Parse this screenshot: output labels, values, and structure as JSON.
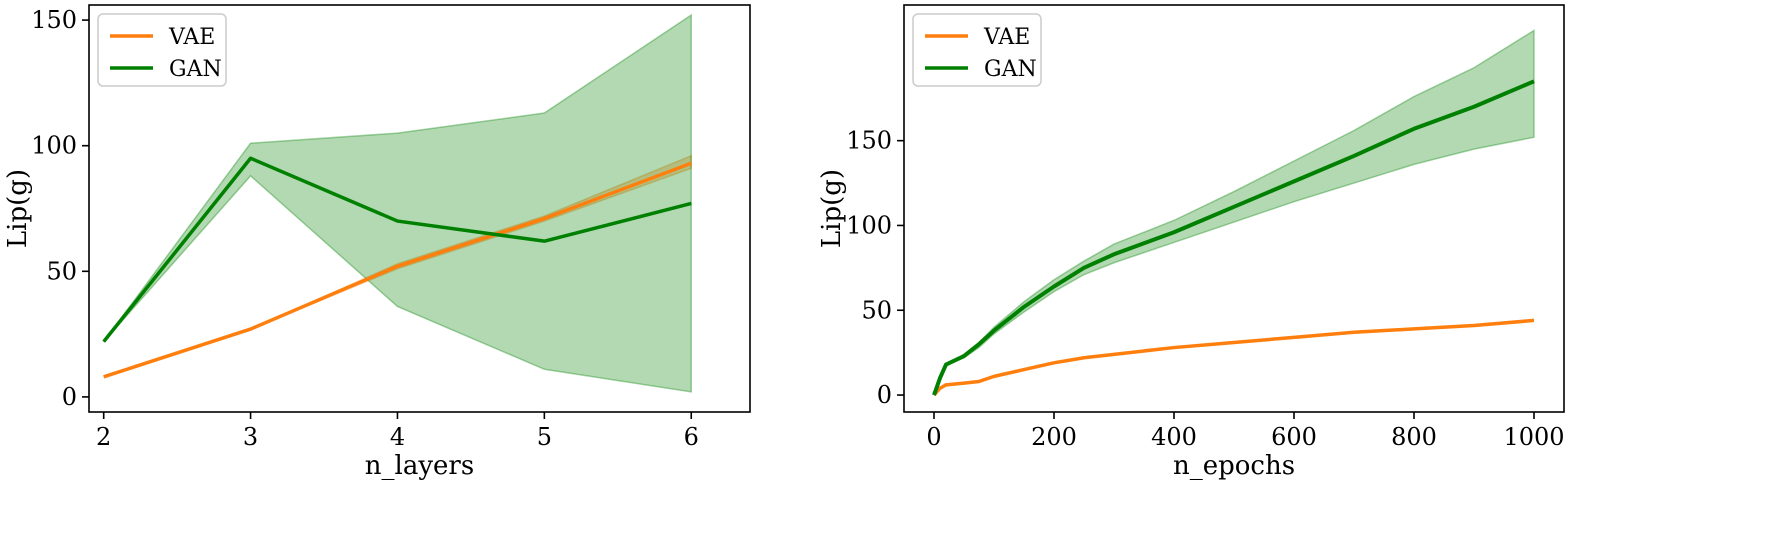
{
  "chart_data": [
    {
      "type": "line",
      "title": "",
      "xlabel": "n_layers",
      "ylabel": "Lip(g)",
      "x": [
        2,
        3,
        4,
        5,
        6
      ],
      "xlim": [
        1.9,
        6.4
      ],
      "ylim": [
        -6,
        156
      ],
      "xticks": [
        2,
        3,
        4,
        5,
        6
      ],
      "yticks": [
        0,
        50,
        100,
        150
      ],
      "grid": false,
      "legend": "top-left",
      "series": [
        {
          "name": "VAE",
          "color": "#ff7f0e",
          "values": [
            8,
            27,
            52,
            71,
            93
          ],
          "band_low": [
            8,
            27,
            51,
            70,
            91
          ],
          "band_high": [
            8,
            27,
            53,
            72,
            96
          ]
        },
        {
          "name": "GAN",
          "color": "#008000",
          "values": [
            22,
            95,
            70,
            62,
            77
          ],
          "band_low": [
            22,
            88,
            36,
            11,
            2
          ],
          "band_high": [
            22,
            101,
            105,
            113,
            152
          ]
        }
      ]
    },
    {
      "type": "line",
      "title": "",
      "xlabel": "n_epochs",
      "ylabel": "Lip(g)",
      "x": [
        0,
        10,
        20,
        50,
        75,
        100,
        150,
        200,
        250,
        300,
        400,
        500,
        600,
        700,
        800,
        900,
        1000
      ],
      "xlim": [
        -50,
        1050
      ],
      "ylim": [
        -10,
        230
      ],
      "xticks": [
        0,
        200,
        400,
        600,
        800,
        1000
      ],
      "yticks": [
        0,
        50,
        100,
        150
      ],
      "grid": false,
      "legend": "top-left",
      "series": [
        {
          "name": "VAE",
          "color": "#ff7f0e",
          "values": [
            0,
            4,
            6,
            7,
            8,
            11,
            15,
            19,
            22,
            24,
            28,
            31,
            34,
            37,
            39,
            41,
            44
          ]
        },
        {
          "name": "GAN",
          "color": "#008000",
          "values": [
            0,
            10,
            18,
            23,
            30,
            38,
            52,
            64,
            75,
            83,
            96,
            111,
            126,
            141,
            157,
            170,
            185
          ],
          "band_low": [
            0,
            10,
            18,
            22,
            28,
            36,
            49,
            61,
            71,
            78,
            90,
            102,
            114,
            125,
            136,
            145,
            152
          ],
          "band_high": [
            0,
            10,
            18,
            24,
            31,
            40,
            55,
            68,
            79,
            89,
            103,
            120,
            138,
            156,
            176,
            193,
            215
          ]
        }
      ]
    }
  ]
}
